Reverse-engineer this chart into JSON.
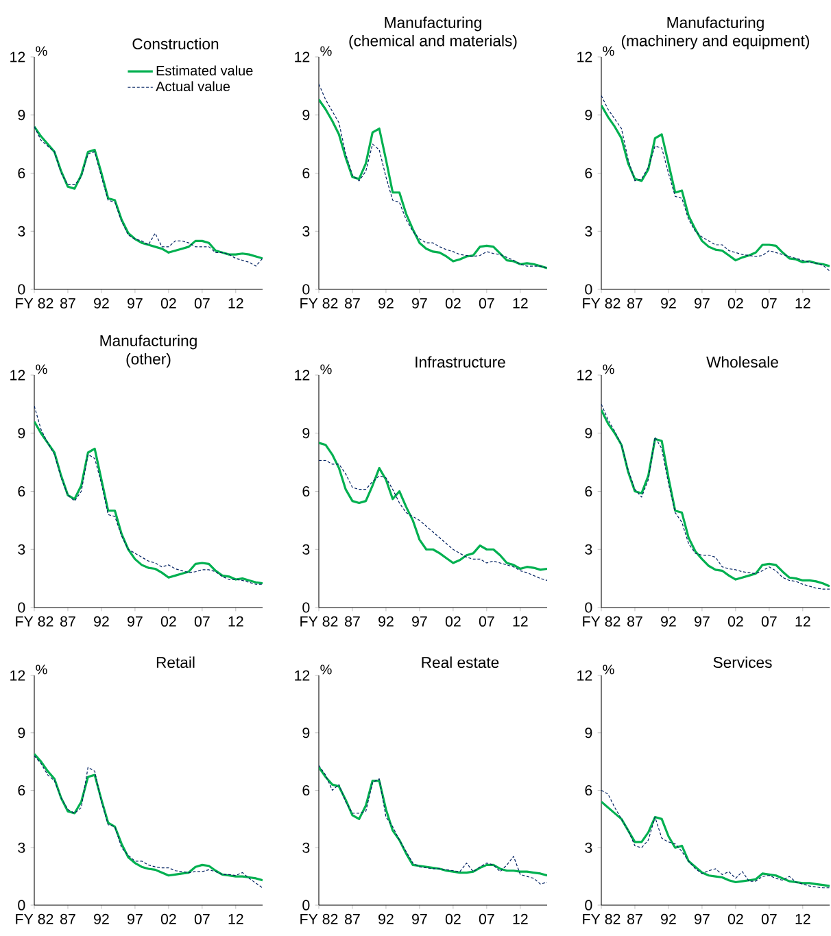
{
  "chart_data": [
    {
      "type": "line",
      "title": "Construction",
      "ylabel": "%",
      "legend": "top right",
      "x": [
        1982,
        1983,
        1984,
        1985,
        1986,
        1987,
        1988,
        1989,
        1990,
        1991,
        1992,
        1993,
        1994,
        1995,
        1996,
        1997,
        1998,
        1999,
        2000,
        2001,
        2002,
        2003,
        2004,
        2005,
        2006,
        2007,
        2008,
        2009,
        2010,
        2011,
        2012,
        2013,
        2014,
        2015,
        2016
      ],
      "xlim": [
        1982,
        2016
      ],
      "xticks": [
        {
          "value": 1982,
          "label": "FY 82"
        },
        {
          "value": 1987,
          "label": "87"
        },
        {
          "value": 1992,
          "label": "92"
        },
        {
          "value": 1997,
          "label": "97"
        },
        {
          "value": 2002,
          "label": "02"
        },
        {
          "value": 2007,
          "label": "07"
        },
        {
          "value": 2012,
          "label": "12"
        }
      ],
      "ylim": [
        0,
        12
      ],
      "yticks": [
        0,
        3,
        6,
        9,
        12
      ],
      "series": [
        {
          "name": "Estimated value",
          "color": "#00b050",
          "line_style": "solid",
          "values": [
            8.4,
            7.9,
            7.5,
            7.1,
            6.1,
            5.3,
            5.2,
            5.9,
            7.1,
            7.2,
            6.0,
            4.7,
            4.6,
            3.6,
            2.9,
            2.6,
            2.4,
            2.3,
            2.2,
            2.1,
            1.9,
            2.0,
            2.1,
            2.2,
            2.5,
            2.5,
            2.4,
            2.0,
            1.9,
            1.8,
            1.8,
            1.85,
            1.8,
            1.7,
            1.6
          ]
        },
        {
          "name": "Actual value",
          "color": "#002060",
          "line_style": "dashed",
          "values": [
            8.4,
            7.7,
            7.4,
            7.1,
            6.0,
            5.4,
            5.4,
            5.8,
            7.0,
            7.1,
            5.8,
            4.6,
            4.5,
            3.5,
            2.8,
            2.6,
            2.5,
            2.3,
            2.9,
            2.2,
            2.2,
            2.5,
            2.5,
            2.4,
            2.2,
            2.2,
            2.2,
            1.9,
            1.9,
            1.8,
            1.6,
            1.5,
            1.4,
            1.2,
            1.6
          ]
        }
      ]
    },
    {
      "type": "line",
      "title": "Manufacturing (chemical and materials)",
      "ylabel": "%",
      "x": [
        1982,
        1983,
        1984,
        1985,
        1986,
        1987,
        1988,
        1989,
        1990,
        1991,
        1992,
        1993,
        1994,
        1995,
        1996,
        1997,
        1998,
        1999,
        2000,
        2001,
        2002,
        2003,
        2004,
        2005,
        2006,
        2007,
        2008,
        2009,
        2010,
        2011,
        2012,
        2013,
        2014,
        2015,
        2016
      ],
      "xlim": [
        1982,
        2016
      ],
      "xticks": [
        {
          "value": 1982,
          "label": "FY 82"
        },
        {
          "value": 1987,
          "label": "87"
        },
        {
          "value": 1992,
          "label": "92"
        },
        {
          "value": 1997,
          "label": "97"
        },
        {
          "value": 2002,
          "label": "02"
        },
        {
          "value": 2007,
          "label": "07"
        },
        {
          "value": 2012,
          "label": "12"
        }
      ],
      "ylim": [
        0,
        12
      ],
      "yticks": [
        0,
        3,
        6,
        9,
        12
      ],
      "series": [
        {
          "color": "#00b050",
          "line_style": "solid",
          "values": [
            9.8,
            9.3,
            8.7,
            8.0,
            6.8,
            5.8,
            5.7,
            6.5,
            8.1,
            8.3,
            6.7,
            5.0,
            5.0,
            3.9,
            3.1,
            2.4,
            2.1,
            1.95,
            1.9,
            1.7,
            1.45,
            1.55,
            1.7,
            1.75,
            2.2,
            2.25,
            2.2,
            1.85,
            1.5,
            1.45,
            1.3,
            1.35,
            1.3,
            1.2,
            1.1
          ]
        },
        {
          "color": "#002060",
          "line_style": "dashed",
          "values": [
            10.6,
            9.8,
            9.2,
            8.6,
            7.0,
            5.9,
            5.6,
            6.1,
            7.5,
            7.2,
            5.8,
            4.6,
            4.5,
            3.6,
            3.0,
            2.6,
            2.4,
            2.4,
            2.2,
            2.05,
            1.95,
            1.8,
            1.75,
            1.7,
            1.75,
            1.95,
            1.85,
            1.8,
            1.65,
            1.5,
            1.3,
            1.2,
            1.2,
            1.2,
            1.1
          ]
        }
      ]
    },
    {
      "type": "line",
      "title": "Manufacturing (machinery and equipment)",
      "ylabel": "%",
      "x": [
        1982,
        1983,
        1984,
        1985,
        1986,
        1987,
        1988,
        1989,
        1990,
        1991,
        1992,
        1993,
        1994,
        1995,
        1996,
        1997,
        1998,
        1999,
        2000,
        2001,
        2002,
        2003,
        2004,
        2005,
        2006,
        2007,
        2008,
        2009,
        2010,
        2011,
        2012,
        2013,
        2014,
        2015,
        2016
      ],
      "xlim": [
        1982,
        2016
      ],
      "xticks": [
        {
          "value": 1982,
          "label": "FY 82"
        },
        {
          "value": 1987,
          "label": "87"
        },
        {
          "value": 1992,
          "label": "92"
        },
        {
          "value": 1997,
          "label": "97"
        },
        {
          "value": 2002,
          "label": "02"
        },
        {
          "value": 2007,
          "label": "07"
        },
        {
          "value": 2012,
          "label": "12"
        }
      ],
      "ylim": [
        0,
        12
      ],
      "yticks": [
        0,
        3,
        6,
        9,
        12
      ],
      "series": [
        {
          "color": "#00b050",
          "line_style": "solid",
          "values": [
            9.5,
            8.9,
            8.4,
            7.8,
            6.5,
            5.7,
            5.6,
            6.2,
            7.8,
            8.0,
            6.5,
            5.0,
            5.1,
            3.8,
            3.1,
            2.5,
            2.2,
            2.05,
            2.0,
            1.75,
            1.5,
            1.65,
            1.75,
            1.9,
            2.3,
            2.3,
            2.25,
            1.9,
            1.6,
            1.55,
            1.4,
            1.45,
            1.35,
            1.3,
            1.2
          ]
        },
        {
          "color": "#002060",
          "line_style": "dashed",
          "values": [
            10.0,
            9.3,
            8.8,
            8.3,
            6.7,
            5.6,
            5.7,
            6.3,
            7.4,
            7.3,
            6.0,
            4.8,
            4.7,
            3.6,
            3.0,
            2.7,
            2.5,
            2.3,
            2.3,
            2.0,
            1.9,
            1.8,
            1.75,
            1.7,
            1.75,
            2.0,
            1.9,
            1.8,
            1.7,
            1.6,
            1.5,
            1.4,
            1.35,
            1.25,
            0.95
          ]
        }
      ]
    },
    {
      "type": "line",
      "title": "Manufacturing (other)",
      "ylabel": "%",
      "x": [
        1982,
        1983,
        1984,
        1985,
        1986,
        1987,
        1988,
        1989,
        1990,
        1991,
        1992,
        1993,
        1994,
        1995,
        1996,
        1997,
        1998,
        1999,
        2000,
        2001,
        2002,
        2003,
        2004,
        2005,
        2006,
        2007,
        2008,
        2009,
        2010,
        2011,
        2012,
        2013,
        2014,
        2015,
        2016
      ],
      "xlim": [
        1982,
        2016
      ],
      "xticks": [
        {
          "value": 1982,
          "label": "FY 82"
        },
        {
          "value": 1987,
          "label": "87"
        },
        {
          "value": 1992,
          "label": "92"
        },
        {
          "value": 1997,
          "label": "97"
        },
        {
          "value": 2002,
          "label": "02"
        },
        {
          "value": 2007,
          "label": "07"
        },
        {
          "value": 2012,
          "label": "12"
        }
      ],
      "ylim": [
        0,
        12
      ],
      "yticks": [
        0,
        3,
        6,
        9,
        12
      ],
      "series": [
        {
          "color": "#00b050",
          "line_style": "solid",
          "values": [
            9.6,
            9.0,
            8.5,
            8.0,
            6.8,
            5.8,
            5.6,
            6.3,
            8.0,
            8.2,
            6.6,
            5.0,
            5.0,
            3.8,
            3.0,
            2.5,
            2.2,
            2.05,
            2.0,
            1.8,
            1.55,
            1.65,
            1.75,
            1.85,
            2.25,
            2.3,
            2.25,
            1.9,
            1.65,
            1.6,
            1.45,
            1.5,
            1.4,
            1.3,
            1.25
          ]
        },
        {
          "color": "#002060",
          "line_style": "dashed",
          "values": [
            10.4,
            9.2,
            8.5,
            7.9,
            6.7,
            5.8,
            5.5,
            6.0,
            7.9,
            7.7,
            6.4,
            4.8,
            4.7,
            3.7,
            3.0,
            2.8,
            2.6,
            2.4,
            2.3,
            2.1,
            2.2,
            2.0,
            1.9,
            1.8,
            1.85,
            1.95,
            1.95,
            1.85,
            1.6,
            1.45,
            1.45,
            1.4,
            1.3,
            1.2,
            1.2
          ]
        }
      ]
    },
    {
      "type": "line",
      "title": "Infrastructure",
      "ylabel": "%",
      "x": [
        1982,
        1983,
        1984,
        1985,
        1986,
        1987,
        1988,
        1989,
        1990,
        1991,
        1992,
        1993,
        1994,
        1995,
        1996,
        1997,
        1998,
        1999,
        2000,
        2001,
        2002,
        2003,
        2004,
        2005,
        2006,
        2007,
        2008,
        2009,
        2010,
        2011,
        2012,
        2013,
        2014,
        2015,
        2016
      ],
      "xlim": [
        1982,
        2016
      ],
      "xticks": [
        {
          "value": 1982,
          "label": "FY 82"
        },
        {
          "value": 1987,
          "label": "87"
        },
        {
          "value": 1992,
          "label": "92"
        },
        {
          "value": 1997,
          "label": "97"
        },
        {
          "value": 2002,
          "label": "02"
        },
        {
          "value": 2007,
          "label": "07"
        },
        {
          "value": 2012,
          "label": "12"
        }
      ],
      "ylim": [
        0,
        12
      ],
      "yticks": [
        0,
        3,
        6,
        9,
        12
      ],
      "series": [
        {
          "color": "#00b050",
          "line_style": "solid",
          "values": [
            8.5,
            8.4,
            7.9,
            7.2,
            6.1,
            5.5,
            5.4,
            5.5,
            6.3,
            7.2,
            6.6,
            5.6,
            6.0,
            5.2,
            4.5,
            3.5,
            3.0,
            3.0,
            2.8,
            2.55,
            2.3,
            2.45,
            2.7,
            2.8,
            3.2,
            3.0,
            3.0,
            2.7,
            2.3,
            2.2,
            2.0,
            2.1,
            2.05,
            1.95,
            2.0
          ]
        },
        {
          "color": "#002060",
          "line_style": "dashed",
          "values": [
            7.6,
            7.6,
            7.4,
            7.4,
            6.9,
            6.2,
            6.1,
            6.1,
            6.5,
            6.8,
            6.7,
            6.1,
            5.4,
            4.9,
            4.7,
            4.5,
            4.2,
            3.9,
            3.6,
            3.3,
            3.0,
            2.8,
            2.6,
            2.5,
            2.5,
            2.3,
            2.4,
            2.3,
            2.2,
            2.1,
            1.9,
            1.8,
            1.65,
            1.5,
            1.4
          ]
        }
      ]
    },
    {
      "type": "line",
      "title": "Wholesale",
      "ylabel": "%",
      "x": [
        1982,
        1983,
        1984,
        1985,
        1986,
        1987,
        1988,
        1989,
        1990,
        1991,
        1992,
        1993,
        1994,
        1995,
        1996,
        1997,
        1998,
        1999,
        2000,
        2001,
        2002,
        2003,
        2004,
        2005,
        2006,
        2007,
        2008,
        2009,
        2010,
        2011,
        2012,
        2013,
        2014,
        2015,
        2016
      ],
      "xlim": [
        1982,
        2016
      ],
      "xticks": [
        {
          "value": 1982,
          "label": "FY 82"
        },
        {
          "value": 1987,
          "label": "87"
        },
        {
          "value": 1992,
          "label": "92"
        },
        {
          "value": 1997,
          "label": "97"
        },
        {
          "value": 2002,
          "label": "02"
        },
        {
          "value": 2007,
          "label": "07"
        },
        {
          "value": 2012,
          "label": "12"
        }
      ],
      "ylim": [
        0,
        12
      ],
      "yticks": [
        0,
        3,
        6,
        9,
        12
      ],
      "series": [
        {
          "color": "#00b050",
          "line_style": "solid",
          "values": [
            10.2,
            9.5,
            9.0,
            8.4,
            7.0,
            6.0,
            5.9,
            6.8,
            8.7,
            8.6,
            6.7,
            5.0,
            4.9,
            3.6,
            2.9,
            2.5,
            2.15,
            1.95,
            1.9,
            1.65,
            1.45,
            1.55,
            1.65,
            1.75,
            2.2,
            2.25,
            2.2,
            1.85,
            1.55,
            1.5,
            1.4,
            1.4,
            1.35,
            1.25,
            1.1
          ]
        },
        {
          "color": "#002060",
          "line_style": "dashed",
          "values": [
            10.5,
            9.7,
            9.1,
            8.4,
            7.1,
            6.1,
            5.7,
            6.6,
            8.8,
            8.2,
            6.4,
            4.9,
            4.4,
            3.3,
            2.8,
            2.7,
            2.7,
            2.6,
            2.1,
            2.0,
            1.95,
            1.85,
            1.8,
            1.75,
            1.9,
            2.1,
            1.9,
            1.55,
            1.4,
            1.35,
            1.2,
            1.1,
            1.0,
            0.95,
            0.95
          ]
        }
      ]
    },
    {
      "type": "line",
      "title": "Retail",
      "ylabel": "%",
      "x": [
        1982,
        1983,
        1984,
        1985,
        1986,
        1987,
        1988,
        1989,
        1990,
        1991,
        1992,
        1993,
        1994,
        1995,
        1996,
        1997,
        1998,
        1999,
        2000,
        2001,
        2002,
        2003,
        2004,
        2005,
        2006,
        2007,
        2008,
        2009,
        2010,
        2011,
        2012,
        2013,
        2014,
        2015,
        2016
      ],
      "xlim": [
        1982,
        2016
      ],
      "xticks": [
        {
          "value": 1982,
          "label": "FY 82"
        },
        {
          "value": 1987,
          "label": "87"
        },
        {
          "value": 1992,
          "label": "92"
        },
        {
          "value": 1997,
          "label": "97"
        },
        {
          "value": 2002,
          "label": "02"
        },
        {
          "value": 2007,
          "label": "07"
        },
        {
          "value": 2012,
          "label": "12"
        }
      ],
      "ylim": [
        0,
        12
      ],
      "yticks": [
        0,
        3,
        6,
        9,
        12
      ],
      "series": [
        {
          "color": "#00b050",
          "line_style": "solid",
          "values": [
            7.9,
            7.5,
            7.0,
            6.6,
            5.6,
            4.9,
            4.8,
            5.4,
            6.7,
            6.8,
            5.5,
            4.3,
            4.1,
            3.2,
            2.5,
            2.2,
            2.0,
            1.9,
            1.85,
            1.7,
            1.55,
            1.6,
            1.65,
            1.7,
            2.0,
            2.1,
            2.05,
            1.8,
            1.6,
            1.55,
            1.5,
            1.5,
            1.45,
            1.4,
            1.3
          ]
        },
        {
          "color": "#002060",
          "line_style": "dashed",
          "values": [
            7.8,
            7.4,
            6.8,
            6.5,
            5.6,
            5.0,
            4.8,
            5.1,
            7.2,
            7.0,
            5.4,
            4.2,
            4.1,
            3.0,
            2.6,
            2.3,
            2.3,
            2.1,
            2.0,
            1.95,
            1.95,
            1.8,
            1.75,
            1.7,
            1.75,
            1.75,
            1.85,
            1.75,
            1.6,
            1.6,
            1.55,
            1.7,
            1.4,
            1.15,
            0.9
          ]
        }
      ]
    },
    {
      "type": "line",
      "title": "Real estate",
      "ylabel": "%",
      "x": [
        1982,
        1983,
        1984,
        1985,
        1986,
        1987,
        1988,
        1989,
        1990,
        1991,
        1992,
        1993,
        1994,
        1995,
        1996,
        1997,
        1998,
        1999,
        2000,
        2001,
        2002,
        2003,
        2004,
        2005,
        2006,
        2007,
        2008,
        2009,
        2010,
        2011,
        2012,
        2013,
        2014,
        2015,
        2016
      ],
      "xlim": [
        1982,
        2016
      ],
      "xticks": [
        {
          "value": 1982,
          "label": "FY 82"
        },
        {
          "value": 1987,
          "label": "87"
        },
        {
          "value": 1992,
          "label": "92"
        },
        {
          "value": 1997,
          "label": "97"
        },
        {
          "value": 2002,
          "label": "02"
        },
        {
          "value": 2007,
          "label": "07"
        },
        {
          "value": 2012,
          "label": "12"
        }
      ],
      "ylim": [
        0,
        12
      ],
      "yticks": [
        0,
        3,
        6,
        9,
        12
      ],
      "series": [
        {
          "color": "#00b050",
          "line_style": "solid",
          "values": [
            7.2,
            6.7,
            6.3,
            6.2,
            5.5,
            4.7,
            4.5,
            5.2,
            6.5,
            6.5,
            5.0,
            3.9,
            3.4,
            2.7,
            2.1,
            2.05,
            2.0,
            1.95,
            1.9,
            1.8,
            1.75,
            1.7,
            1.7,
            1.75,
            1.95,
            2.1,
            2.1,
            1.9,
            1.8,
            1.8,
            1.75,
            1.75,
            1.7,
            1.65,
            1.55
          ]
        },
        {
          "color": "#002060",
          "line_style": "dashed",
          "values": [
            7.3,
            6.8,
            6.0,
            6.3,
            5.4,
            4.8,
            4.8,
            4.9,
            6.4,
            6.6,
            4.6,
            4.1,
            3.4,
            2.8,
            2.2,
            2.0,
            1.95,
            1.9,
            1.9,
            1.85,
            1.8,
            1.75,
            2.2,
            1.75,
            2.0,
            2.2,
            2.1,
            1.75,
            2.1,
            2.55,
            1.6,
            1.5,
            1.4,
            1.1,
            1.2
          ]
        }
      ]
    },
    {
      "type": "line",
      "title": "Services",
      "ylabel": "%",
      "x": [
        1982,
        1983,
        1984,
        1985,
        1986,
        1987,
        1988,
        1989,
        1990,
        1991,
        1992,
        1993,
        1994,
        1995,
        1996,
        1997,
        1998,
        1999,
        2000,
        2001,
        2002,
        2003,
        2004,
        2005,
        2006,
        2007,
        2008,
        2009,
        2010,
        2011,
        2012,
        2013,
        2014,
        2015,
        2016
      ],
      "xlim": [
        1982,
        2016
      ],
      "xticks": [
        {
          "value": 1982,
          "label": "FY 82"
        },
        {
          "value": 1987,
          "label": "87"
        },
        {
          "value": 1992,
          "label": "92"
        },
        {
          "value": 1997,
          "label": "97"
        },
        {
          "value": 2002,
          "label": "02"
        },
        {
          "value": 2007,
          "label": "07"
        },
        {
          "value": 2012,
          "label": "12"
        }
      ],
      "ylim": [
        0,
        12
      ],
      "yticks": [
        0,
        3,
        6,
        9,
        12
      ],
      "series": [
        {
          "color": "#00b050",
          "line_style": "solid",
          "values": [
            5.4,
            5.1,
            4.8,
            4.5,
            3.9,
            3.3,
            3.3,
            3.8,
            4.6,
            4.5,
            3.6,
            3.0,
            3.1,
            2.3,
            2.0,
            1.7,
            1.55,
            1.5,
            1.45,
            1.3,
            1.2,
            1.25,
            1.3,
            1.35,
            1.65,
            1.6,
            1.55,
            1.4,
            1.25,
            1.2,
            1.15,
            1.15,
            1.1,
            1.05,
            1.0
          ]
        },
        {
          "color": "#002060",
          "line_style": "dashed",
          "values": [
            6.0,
            5.8,
            5.1,
            4.5,
            3.9,
            3.1,
            3.0,
            3.4,
            4.6,
            3.5,
            3.3,
            3.2,
            2.8,
            2.3,
            1.9,
            1.65,
            1.8,
            1.9,
            1.6,
            1.75,
            1.4,
            1.75,
            1.25,
            1.25,
            1.5,
            1.55,
            1.4,
            1.3,
            1.5,
            1.2,
            1.1,
            1.0,
            0.95,
            0.9,
            0.9
          ]
        }
      ]
    }
  ]
}
